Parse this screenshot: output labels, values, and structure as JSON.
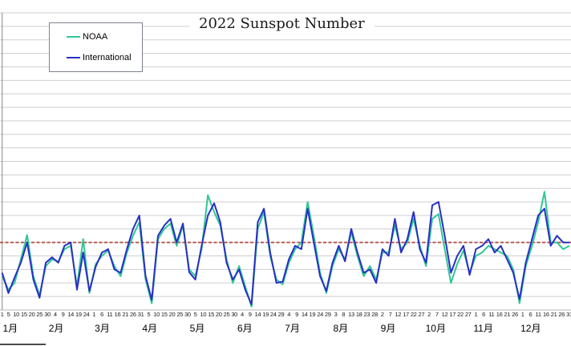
{
  "title": "2022 Sunspot Number",
  "legend": {
    "items": [
      {
        "label": "NOAA",
        "color": "#2FC796"
      },
      {
        "label": "International",
        "color": "#2730C4"
      }
    ]
  },
  "colors": {
    "noaa_series": "#2FC796",
    "international_series": "#2730C4",
    "reference_line": "#B8524A",
    "gridline": "#CFCFCF",
    "axis_line": "#9A9A9A"
  },
  "x_axis": {
    "month_labels": [
      "1月",
      "2月",
      "3月",
      "4月",
      "5月",
      "6月",
      "7月",
      "8月",
      "9月",
      "10月",
      "11月",
      "12月"
    ],
    "month_day_counts": [
      31,
      28,
      31,
      30,
      31,
      30,
      31,
      31,
      30,
      31,
      30,
      31
    ],
    "day_tick_labels": [
      "1",
      "5",
      "10",
      "15",
      "20",
      "25",
      "30",
      "4",
      "9",
      "14",
      "19",
      "24",
      "1",
      "6",
      "11",
      "16",
      "21",
      "26",
      "31",
      "5",
      "10",
      "15",
      "20",
      "25",
      "30",
      "5",
      "10",
      "15",
      "20",
      "25",
      "30",
      "4",
      "9",
      "14",
      "19",
      "24",
      "29",
      "4",
      "9",
      "14",
      "19",
      "24",
      "29",
      "3",
      "8",
      "13",
      "18",
      "23",
      "28",
      "2",
      "7",
      "12",
      "17",
      "22",
      "27",
      "2",
      "7",
      "12",
      "17",
      "22",
      "27",
      "1",
      "6",
      "11",
      "16",
      "21",
      "26",
      "1",
      "6",
      "11",
      "16",
      "21",
      "26",
      "31"
    ]
  },
  "chart_data": {
    "type": "line",
    "title": "2022 Sunspot Number",
    "xlabel": "",
    "ylabel": "",
    "x_unit": "day of year 2022 (series sampled every 4 days, day 1 to 365)",
    "x_start": 1,
    "x_step": 4,
    "x_range": [
      1,
      365
    ],
    "ylim": [
      0,
      440
    ],
    "gridline_step": 20,
    "grid": true,
    "legend_position": "top-left",
    "y_axis_labels_visible": false,
    "reference_line": {
      "value": 100,
      "style": "dashed",
      "color": "#B8524A"
    },
    "series": [
      {
        "name": "NOAA",
        "color": "#2FC796",
        "values": [
          50,
          30,
          40,
          75,
          111,
          50,
          22,
          65,
          75,
          72,
          90,
          95,
          35,
          105,
          25,
          68,
          80,
          88,
          65,
          50,
          85,
          110,
          130,
          45,
          10,
          105,
          120,
          128,
          95,
          125,
          60,
          50,
          90,
          170,
          145,
          125,
          75,
          40,
          65,
          35,
          5,
          120,
          145,
          80,
          45,
          38,
          70,
          90,
          100,
          160,
          110,
          55,
          25,
          65,
          90,
          75,
          115,
          80,
          50,
          65,
          45,
          85,
          85,
          125,
          90,
          100,
          135,
          95,
          65,
          135,
          142,
          90,
          40,
          68,
          88,
          55,
          80,
          85,
          95,
          90,
          85,
          80,
          60,
          10,
          65,
          95,
          130,
          175,
          100,
          100,
          90,
          95
        ]
      },
      {
        "name": "International",
        "color": "#2730C4",
        "values": [
          55,
          25,
          48,
          70,
          100,
          45,
          18,
          70,
          78,
          70,
          95,
          100,
          30,
          85,
          28,
          64,
          85,
          90,
          60,
          55,
          90,
          120,
          140,
          50,
          15,
          110,
          125,
          135,
          100,
          128,
          56,
          45,
          95,
          140,
          158,
          130,
          70,
          45,
          60,
          30,
          8,
          130,
          150,
          85,
          40,
          42,
          75,
          95,
          90,
          150,
          100,
          50,
          28,
          70,
          95,
          72,
          120,
          85,
          55,
          60,
          40,
          90,
          80,
          135,
          85,
          105,
          145,
          90,
          70,
          155,
          160,
          110,
          55,
          80,
          95,
          52,
          90,
          95,
          105,
          85,
          95,
          75,
          55,
          16,
          70,
          105,
          140,
          150,
          95,
          110,
          100,
          100
        ]
      }
    ]
  }
}
